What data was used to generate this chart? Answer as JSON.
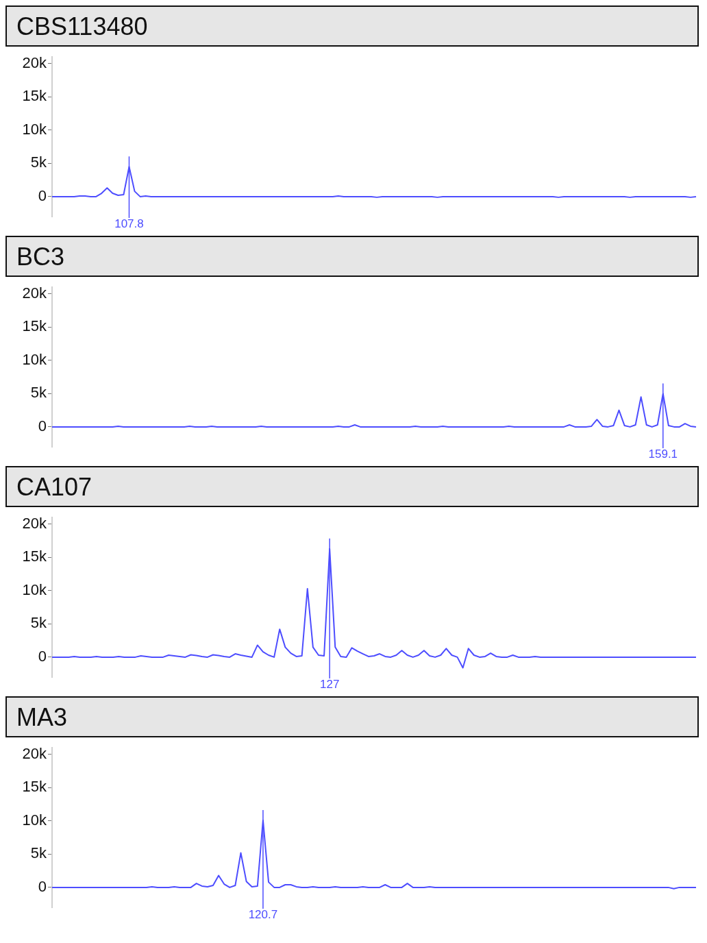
{
  "chart_data": [
    {
      "type": "line",
      "title": "CBS113480",
      "tick_labels": "y",
      "marker": "none",
      "color": "#4d4dff",
      "ylim": [
        -3000,
        21000
      ],
      "yticks": [
        {
          "value": 0,
          "label": "0"
        },
        {
          "value": 5000,
          "label": "5k"
        },
        {
          "value": 10000,
          "label": "10k"
        },
        {
          "value": 15000,
          "label": "15k"
        },
        {
          "value": 20000,
          "label": "20k"
        }
      ],
      "annotations": [
        "107.8"
      ],
      "categories": [
        null,
        null,
        null,
        null,
        null,
        null,
        null,
        null,
        null,
        null,
        null,
        null,
        null,
        null,
        null,
        null,
        null,
        null,
        null,
        null,
        null,
        null,
        null,
        null,
        null,
        null,
        null,
        null,
        null,
        null,
        null,
        null,
        null,
        null,
        null,
        null,
        null,
        null,
        null,
        null,
        null,
        null,
        null,
        null,
        null,
        null,
        null,
        null,
        null,
        null,
        null,
        null,
        null,
        null,
        null,
        null,
        null,
        null,
        null,
        null,
        null,
        null,
        null,
        null,
        null,
        null,
        null,
        null,
        null,
        null,
        null,
        null,
        null,
        null,
        null,
        null,
        null,
        null,
        null,
        null,
        null,
        null,
        null,
        null,
        null,
        null,
        null,
        null,
        null,
        null,
        null,
        null,
        null,
        null,
        null,
        null,
        null,
        null,
        null,
        null,
        null,
        null,
        null,
        null,
        null,
        null,
        null,
        null,
        null,
        null,
        null,
        null,
        null,
        null,
        null,
        null,
        null,
        null
      ],
      "values": [
        0,
        0,
        0,
        0,
        0,
        100,
        100,
        0,
        0,
        500,
        1300,
        500,
        200,
        300,
        4500,
        800,
        0,
        100,
        0,
        0,
        0,
        0,
        0,
        0,
        0,
        0,
        0,
        0,
        0,
        0,
        0,
        0,
        0,
        0,
        0,
        0,
        0,
        0,
        0,
        0,
        0,
        0,
        0,
        0,
        0,
        0,
        0,
        0,
        0,
        0,
        0,
        0,
        100,
        0,
        0,
        0,
        0,
        0,
        0,
        -100,
        0,
        0,
        0,
        0,
        0,
        0,
        0,
        0,
        0,
        0,
        -100,
        0,
        0,
        0,
        0,
        0,
        0,
        0,
        0,
        0,
        0,
        0,
        0,
        0,
        0,
        0,
        0,
        0,
        0,
        0,
        0,
        0,
        -100,
        0,
        0,
        0,
        0,
        0,
        0,
        0,
        0,
        0,
        0,
        0,
        0,
        -100,
        0,
        0,
        0,
        0,
        0,
        0,
        0,
        0,
        0,
        0,
        -100,
        0
      ]
    },
    {
      "type": "line",
      "title": "BC3",
      "tick_labels": "y",
      "marker": "none",
      "color": "#4d4dff",
      "ylim": [
        -3000,
        21000
      ],
      "yticks": [
        {
          "value": 0,
          "label": "0"
        },
        {
          "value": 5000,
          "label": "5k"
        },
        {
          "value": 10000,
          "label": "10k"
        },
        {
          "value": 15000,
          "label": "15k"
        },
        {
          "value": 20000,
          "label": "20k"
        }
      ],
      "annotations": [
        "159.1"
      ],
      "categories": [
        null,
        null,
        null,
        null,
        null,
        null,
        null,
        null,
        null,
        null,
        null,
        null,
        null,
        null,
        null,
        null,
        null,
        null,
        null,
        null,
        null,
        null,
        null,
        null,
        null,
        null,
        null,
        null,
        null,
        null,
        null,
        null,
        null,
        null,
        null,
        null,
        null,
        null,
        null,
        null,
        null,
        null,
        null,
        null,
        null,
        null,
        null,
        null,
        null,
        null,
        null,
        null,
        null,
        null,
        null,
        null,
        null,
        null,
        null,
        null,
        null,
        null,
        null,
        null,
        null,
        null,
        null,
        null,
        null,
        null,
        null,
        null,
        null,
        null,
        null,
        null,
        null,
        null,
        null,
        null,
        null,
        null,
        null,
        null,
        null,
        null,
        null,
        null,
        null,
        null,
        null,
        null,
        null,
        null,
        null,
        null,
        null,
        null,
        null,
        null,
        null,
        null,
        null,
        null,
        null,
        null,
        null,
        null,
        null,
        null,
        null,
        null,
        null,
        null,
        null,
        null,
        null,
        null
      ],
      "values": [
        0,
        0,
        0,
        0,
        0,
        0,
        0,
        0,
        0,
        0,
        0,
        0,
        100,
        0,
        0,
        0,
        0,
        0,
        0,
        0,
        0,
        0,
        0,
        0,
        0,
        100,
        0,
        0,
        0,
        100,
        0,
        0,
        0,
        0,
        0,
        0,
        0,
        0,
        100,
        0,
        0,
        0,
        0,
        0,
        0,
        0,
        0,
        0,
        0,
        0,
        0,
        0,
        100,
        0,
        0,
        300,
        0,
        0,
        0,
        0,
        0,
        0,
        0,
        0,
        0,
        0,
        100,
        0,
        0,
        0,
        0,
        100,
        0,
        0,
        0,
        0,
        0,
        0,
        0,
        0,
        0,
        0,
        0,
        100,
        0,
        0,
        0,
        0,
        0,
        0,
        0,
        0,
        0,
        0,
        300,
        0,
        0,
        0,
        100,
        1100,
        100,
        0,
        200,
        2500,
        200,
        0,
        300,
        4500,
        300,
        0,
        300,
        5000,
        200,
        0,
        0,
        500,
        100,
        0
      ]
    },
    {
      "type": "line",
      "title": "CA107",
      "tick_labels": "y",
      "marker": "none",
      "color": "#4d4dff",
      "ylim": [
        -3000,
        21000
      ],
      "yticks": [
        {
          "value": 0,
          "label": "0"
        },
        {
          "value": 5000,
          "label": "5k"
        },
        {
          "value": 10000,
          "label": "10k"
        },
        {
          "value": 15000,
          "label": "15k"
        },
        {
          "value": 20000,
          "label": "20k"
        }
      ],
      "annotations": [
        "127"
      ],
      "categories": [
        null,
        null,
        null,
        null,
        null,
        null,
        null,
        null,
        null,
        null,
        null,
        null,
        null,
        null,
        null,
        null,
        null,
        null,
        null,
        null,
        null,
        null,
        null,
        null,
        null,
        null,
        null,
        null,
        null,
        null,
        null,
        null,
        null,
        null,
        null,
        null,
        null,
        null,
        null,
        null,
        null,
        null,
        null,
        null,
        null,
        null,
        null,
        null,
        null,
        null,
        null,
        null,
        null,
        null,
        null,
        null,
        null,
        null,
        null,
        null,
        null,
        null,
        null,
        null,
        null,
        null,
        null,
        null,
        null,
        null,
        null,
        null,
        null,
        null,
        null,
        null,
        null,
        null,
        null,
        null,
        null,
        null,
        null,
        null,
        null,
        null,
        null,
        null,
        null,
        null,
        null,
        null,
        null,
        null,
        null,
        null,
        null,
        null,
        null,
        null,
        null,
        null,
        null,
        null,
        null,
        null,
        null,
        null,
        null,
        null,
        null,
        null,
        null,
        null,
        null,
        null,
        null
      ],
      "values": [
        0,
        0,
        0,
        0,
        100,
        0,
        0,
        0,
        100,
        0,
        0,
        0,
        100,
        0,
        0,
        0,
        200,
        100,
        0,
        0,
        0,
        300,
        200,
        100,
        0,
        350,
        250,
        100,
        0,
        350,
        250,
        100,
        0,
        500,
        300,
        150,
        0,
        1800,
        800,
        300,
        0,
        4200,
        1500,
        600,
        100,
        200,
        10300,
        1500,
        300,
        200,
        16300,
        1500,
        100,
        0,
        1400,
        900,
        500,
        100,
        200,
        500,
        100,
        0,
        300,
        1000,
        300,
        0,
        300,
        1000,
        200,
        0,
        300,
        1300,
        300,
        0,
        -1600,
        1300,
        300,
        0,
        100,
        600,
        100,
        0,
        0,
        300,
        0,
        0,
        0,
        100,
        0,
        0,
        0,
        0,
        0,
        0,
        0,
        0,
        0,
        0,
        0,
        0,
        0,
        0,
        0,
        0,
        0,
        0,
        0,
        0,
        0,
        0,
        0,
        0,
        0,
        0,
        0,
        0,
        0
      ]
    },
    {
      "type": "line",
      "title": "MA3",
      "tick_labels": "y",
      "marker": "none",
      "color": "#4d4dff",
      "ylim": [
        -3000,
        21000
      ],
      "yticks": [
        {
          "value": 0,
          "label": "0"
        },
        {
          "value": 5000,
          "label": "5k"
        },
        {
          "value": 10000,
          "label": "10k"
        },
        {
          "value": 15000,
          "label": "15k"
        },
        {
          "value": 20000,
          "label": "20k"
        }
      ],
      "annotations": [
        "120.7"
      ],
      "categories": [
        null,
        null,
        null,
        null,
        null,
        null,
        null,
        null,
        null,
        null,
        null,
        null,
        null,
        null,
        null,
        null,
        null,
        null,
        null,
        null,
        null,
        null,
        null,
        null,
        null,
        null,
        null,
        null,
        null,
        null,
        null,
        null,
        null,
        null,
        null,
        null,
        null,
        null,
        null,
        null,
        null,
        null,
        null,
        null,
        null,
        null,
        null,
        null,
        null,
        null,
        null,
        null,
        null,
        null,
        null,
        null,
        null,
        null,
        null,
        null,
        null,
        null,
        null,
        null,
        null,
        null,
        null,
        null,
        null,
        null,
        null,
        null,
        null,
        null,
        null,
        null,
        null,
        null,
        null,
        null,
        null,
        null,
        null,
        null,
        null,
        null,
        null,
        null,
        null,
        null,
        null,
        null,
        null,
        null,
        null,
        null,
        null,
        null,
        null,
        null,
        null,
        null,
        null,
        null,
        null,
        null,
        null,
        null,
        null,
        null,
        null,
        null,
        null,
        null,
        null,
        null,
        null
      ],
      "values": [
        0,
        0,
        0,
        0,
        0,
        0,
        0,
        0,
        0,
        0,
        0,
        0,
        0,
        0,
        0,
        0,
        0,
        0,
        100,
        0,
        0,
        0,
        100,
        0,
        0,
        0,
        600,
        200,
        100,
        300,
        1800,
        500,
        0,
        300,
        5200,
        900,
        100,
        200,
        10100,
        800,
        0,
        0,
        400,
        400,
        100,
        0,
        0,
        100,
        0,
        0,
        0,
        100,
        0,
        0,
        0,
        0,
        100,
        0,
        0,
        0,
        400,
        0,
        0,
        0,
        600,
        0,
        0,
        0,
        100,
        0,
        0,
        0,
        0,
        0,
        0,
        0,
        0,
        0,
        0,
        0,
        0,
        0,
        0,
        0,
        0,
        0,
        0,
        0,
        0,
        0,
        0,
        0,
        0,
        0,
        0,
        0,
        0,
        0,
        0,
        0,
        0,
        0,
        0,
        0,
        0,
        0,
        0,
        0,
        0,
        0,
        0,
        0,
        -200,
        0,
        0,
        0,
        0
      ]
    }
  ]
}
